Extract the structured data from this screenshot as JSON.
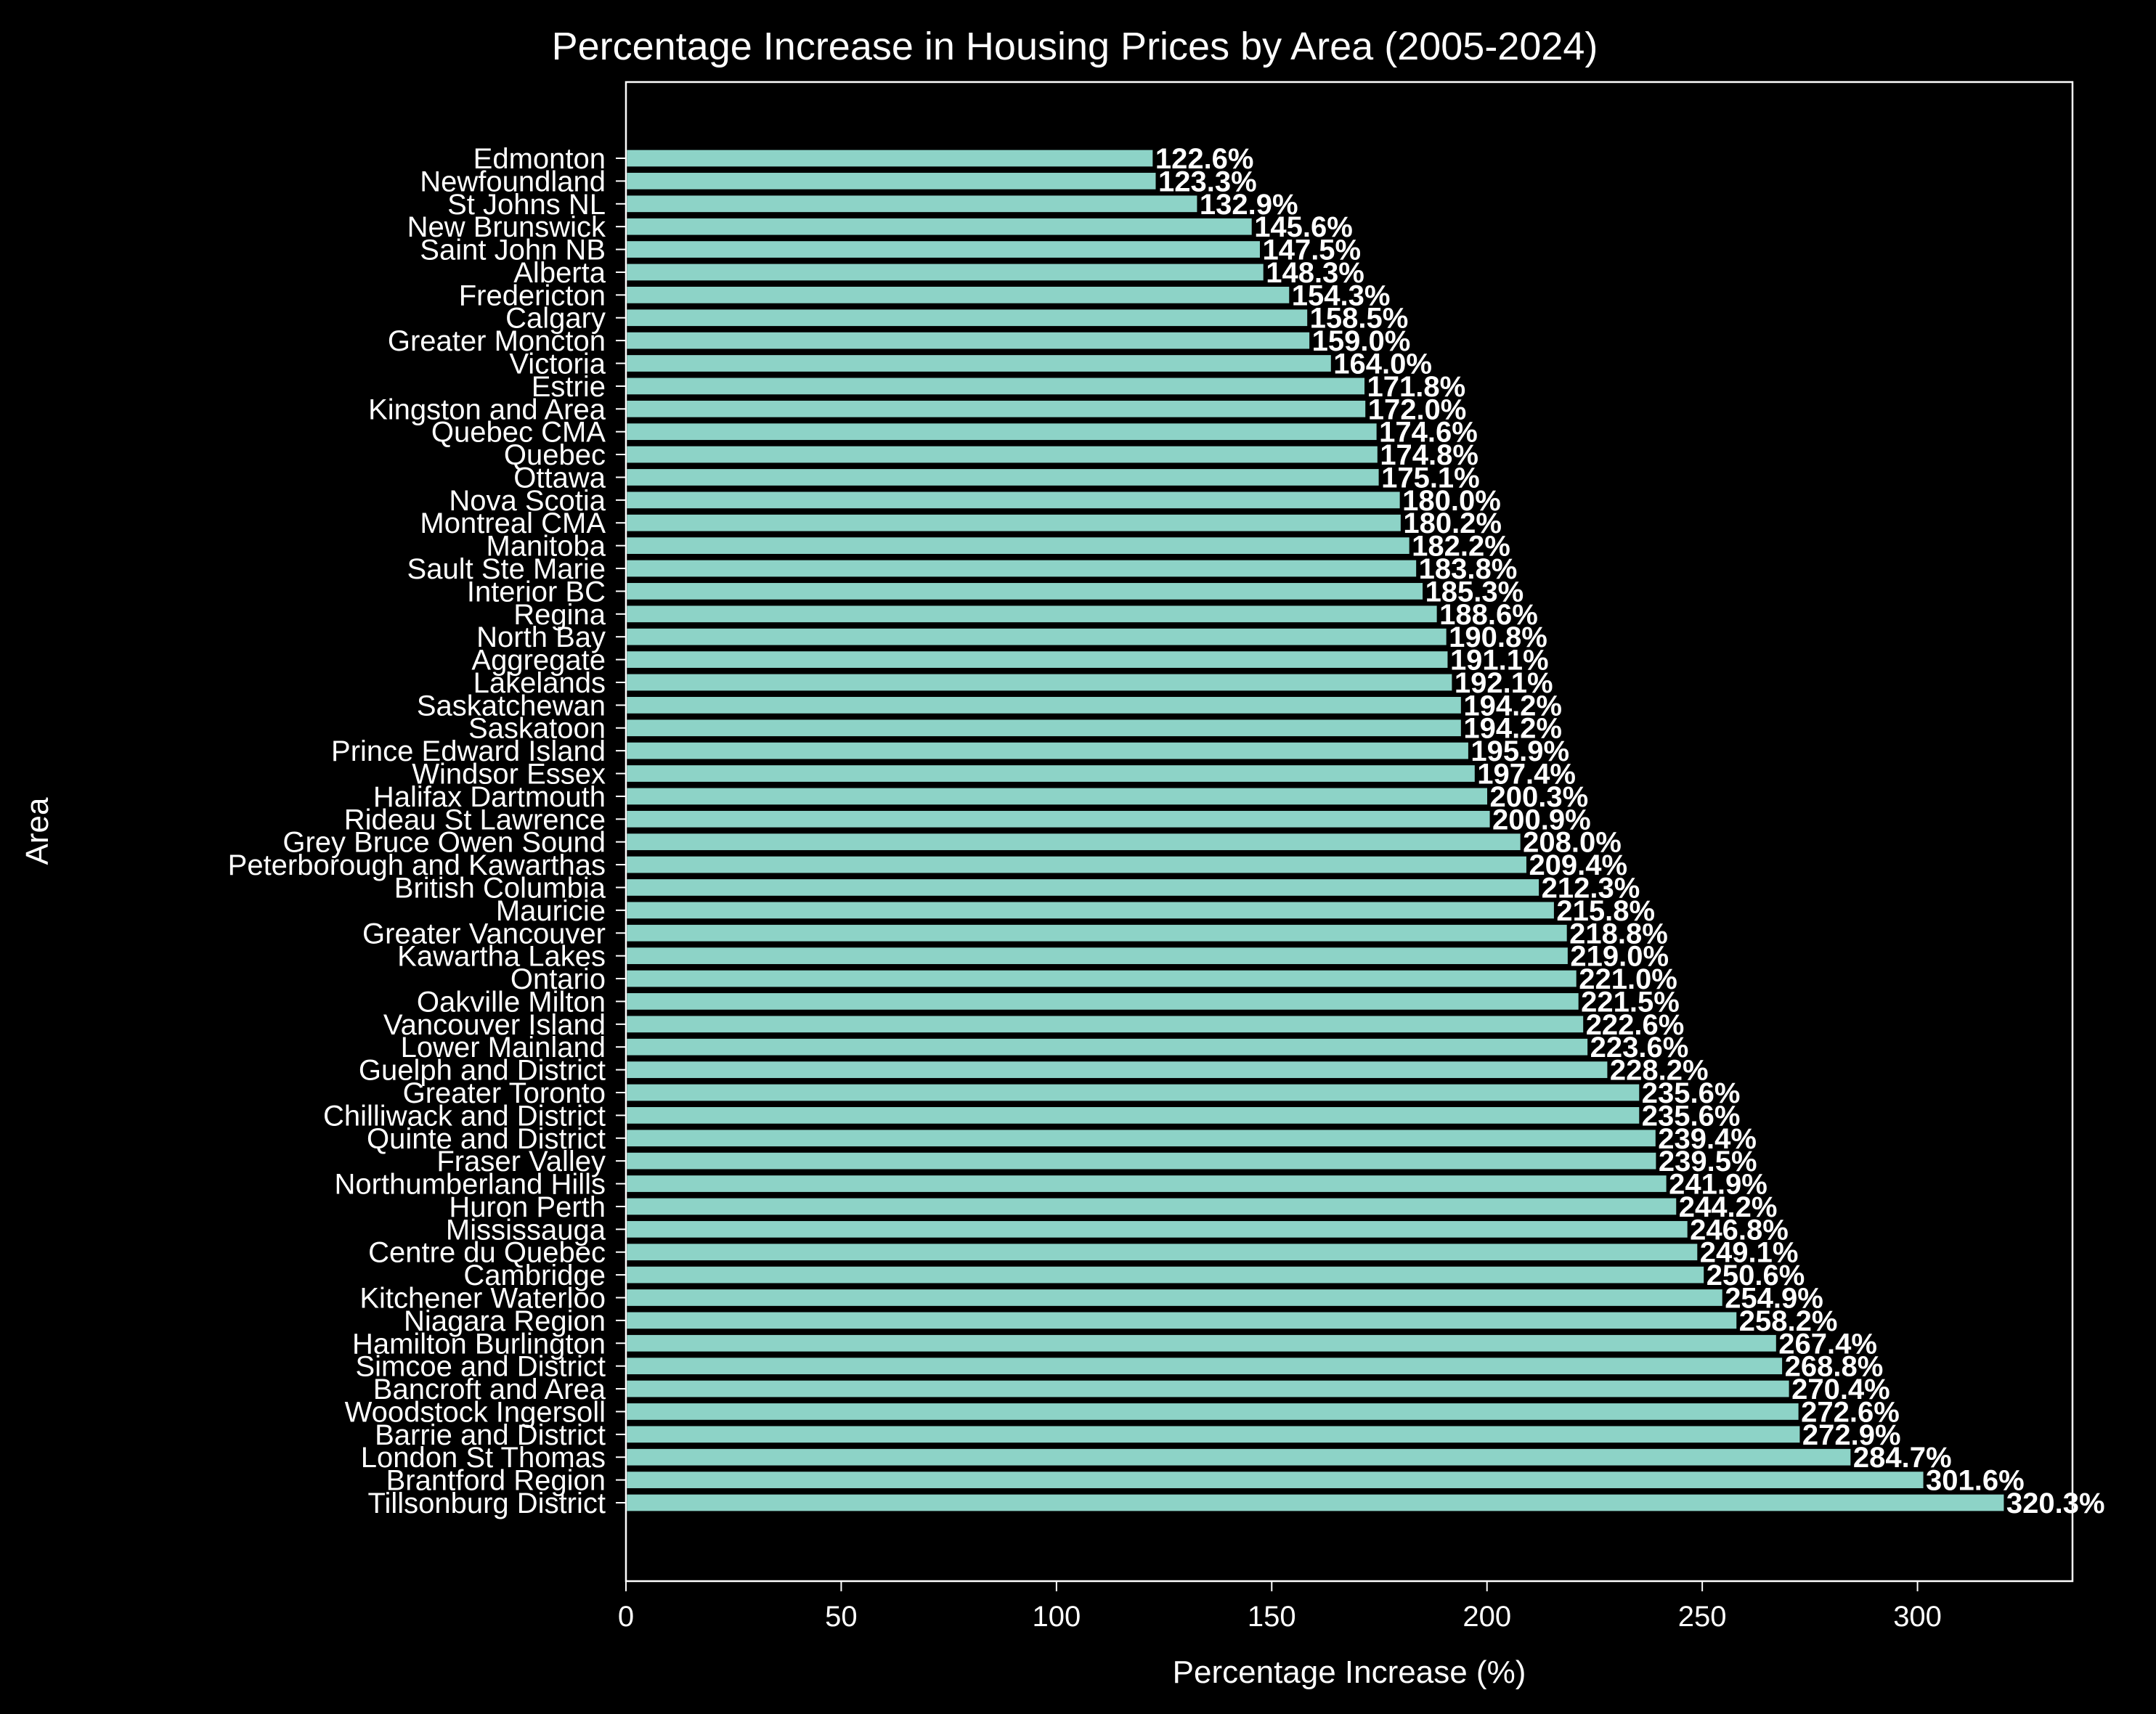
{
  "chart_data": {
    "type": "bar",
    "orientation": "horizontal",
    "title": "Percentage Increase in Housing Prices by Area (2005-2024)",
    "xlabel": "Percentage Increase (%)",
    "ylabel": "Area",
    "xlim": [
      0,
      336
    ],
    "xticks": [
      0,
      50,
      100,
      150,
      200,
      250,
      300
    ],
    "xtick_labels": [
      "0",
      "50",
      "100",
      "150",
      "200",
      "250",
      "300"
    ],
    "grid": false,
    "legend": "none",
    "colors": {
      "background": "#000000",
      "bar": "#8dd3c7",
      "bar_edge": "#000000",
      "text": "#ffffff",
      "axes": "#ffffff"
    },
    "value_suffix": "%",
    "categories": [
      "Edmonton",
      "Newfoundland",
      "St Johns NL",
      "New Brunswick",
      "Saint John NB",
      "Alberta",
      "Fredericton",
      "Calgary",
      "Greater Moncton",
      "Victoria",
      "Estrie",
      "Kingston and Area",
      "Quebec CMA",
      "Quebec",
      "Ottawa",
      "Nova Scotia",
      "Montreal CMA",
      "Manitoba",
      "Sault Ste Marie",
      "Interior BC",
      "Regina",
      "North Bay",
      "Aggregate",
      "Lakelands",
      "Saskatchewan",
      "Saskatoon",
      "Prince Edward Island",
      "Windsor Essex",
      "Halifax Dartmouth",
      "Rideau St Lawrence",
      "Grey Bruce Owen Sound",
      "Peterborough and Kawarthas",
      "British Columbia",
      "Mauricie",
      "Greater Vancouver",
      "Kawartha Lakes",
      "Ontario",
      "Oakville Milton",
      "Vancouver Island",
      "Lower Mainland",
      "Guelph and District",
      "Greater Toronto",
      "Chilliwack and District",
      "Quinte and District",
      "Fraser Valley",
      "Northumberland Hills",
      "Huron Perth",
      "Mississauga",
      "Centre du Quebec",
      "Cambridge",
      "Kitchener Waterloo",
      "Niagara Region",
      "Hamilton Burlington",
      "Simcoe and District",
      "Bancroft and Area",
      "Woodstock Ingersoll",
      "Barrie and District",
      "London St Thomas",
      "Brantford Region",
      "Tillsonburg District"
    ],
    "values": [
      122.6,
      123.3,
      132.9,
      145.6,
      147.5,
      148.3,
      154.3,
      158.5,
      159.0,
      164.0,
      171.8,
      172.0,
      174.6,
      174.8,
      175.1,
      180.0,
      180.2,
      182.2,
      183.8,
      185.3,
      188.6,
      190.8,
      191.1,
      192.1,
      194.2,
      194.2,
      195.9,
      197.4,
      200.3,
      200.9,
      208.0,
      209.4,
      212.3,
      215.8,
      218.8,
      219.0,
      221.0,
      221.5,
      222.6,
      223.6,
      228.2,
      235.6,
      235.6,
      239.4,
      239.5,
      241.9,
      244.2,
      246.8,
      249.1,
      250.6,
      254.9,
      258.2,
      267.4,
      268.8,
      270.4,
      272.6,
      272.9,
      284.7,
      301.6,
      320.3
    ],
    "data_labels": [
      "122.6%",
      "123.3%",
      "132.9%",
      "145.6%",
      "147.5%",
      "148.3%",
      "154.3%",
      "158.5%",
      "159.0%",
      "164.0%",
      "171.8%",
      "172.0%",
      "174.6%",
      "174.8%",
      "175.1%",
      "180.0%",
      "180.2%",
      "182.2%",
      "183.8%",
      "185.3%",
      "188.6%",
      "190.8%",
      "191.1%",
      "192.1%",
      "194.2%",
      "194.2%",
      "195.9%",
      "197.4%",
      "200.3%",
      "200.9%",
      "208.0%",
      "209.4%",
      "212.3%",
      "215.8%",
      "218.8%",
      "219.0%",
      "221.0%",
      "221.5%",
      "222.6%",
      "223.6%",
      "228.2%",
      "235.6%",
      "235.6%",
      "239.4%",
      "239.5%",
      "241.9%",
      "244.2%",
      "246.8%",
      "249.1%",
      "250.6%",
      "254.9%",
      "258.2%",
      "267.4%",
      "268.8%",
      "270.4%",
      "272.6%",
      "272.9%",
      "284.7%",
      "301.6%",
      "320.3%"
    ]
  }
}
